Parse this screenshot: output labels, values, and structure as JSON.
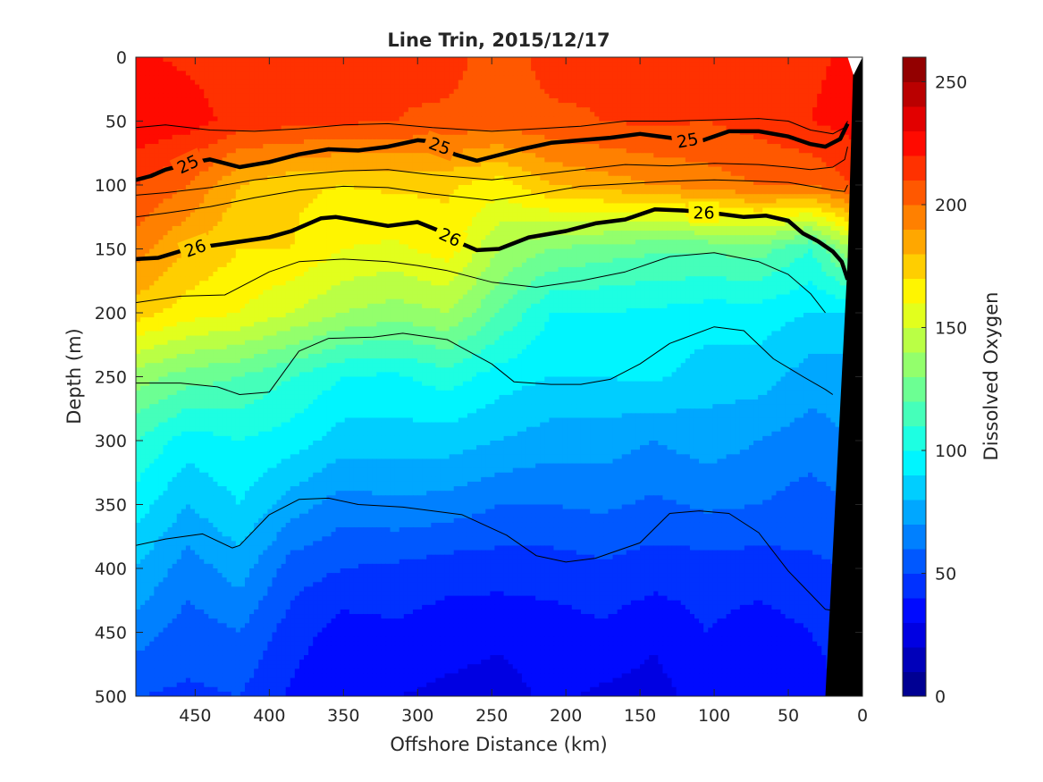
{
  "chart_data": {
    "type": "heatmap",
    "title": "Line Trin, 2015/12/17",
    "xlabel": "Offshore Distance (km)",
    "ylabel": "Depth (m)",
    "colorbar_label": "Dissolved Oxygen",
    "x_direction": "reversed",
    "y_direction": "reversed",
    "xlim": [
      0,
      490
    ],
    "ylim": [
      0,
      500
    ],
    "clim": [
      0,
      260
    ],
    "colormap": "jet",
    "xticks": [
      450,
      400,
      350,
      300,
      250,
      200,
      150,
      100,
      50,
      0
    ],
    "yticks": [
      0,
      50,
      100,
      150,
      200,
      250,
      300,
      350,
      400,
      450,
      500
    ],
    "cticks": [
      0,
      50,
      100,
      150,
      200,
      250
    ],
    "contour_levels": 26,
    "oxygen_field": {
      "x": [
        490,
        455,
        420,
        385,
        350,
        315,
        280,
        245,
        210,
        175,
        140,
        105,
        70,
        35,
        8
      ],
      "depth": [
        0,
        50,
        100,
        150,
        200,
        250,
        300,
        350,
        400,
        450,
        500
      ],
      "values": [
        [
          222,
          218,
          215,
          218,
          214,
          212,
          214,
          205,
          214,
          212,
          210,
          212,
          214,
          218,
          222
        ],
        [
          228,
          225,
          216,
          214,
          212,
          210,
          208,
          205,
          208,
          210,
          212,
          210,
          214,
          220,
          224
        ],
        [
          210,
          200,
          180,
          172,
          170,
          172,
          172,
          165,
          180,
          185,
          190,
          195,
          200,
          200,
          210
        ],
        [
          195,
          180,
          170,
          170,
          160,
          158,
          165,
          140,
          130,
          125,
          122,
          122,
          125,
          110,
          140
        ],
        [
          175,
          165,
          160,
          150,
          140,
          135,
          140,
          120,
          100,
          100,
          98,
          95,
          95,
          90,
          90
        ],
        [
          135,
          125,
          120,
          110,
          100,
          98,
          105,
          95,
          90,
          90,
          92,
          85,
          85,
          75,
          75
        ],
        [
          110,
          95,
          100,
          95,
          85,
          85,
          85,
          80,
          75,
          75,
          70,
          75,
          70,
          65,
          70
        ],
        [
          95,
          80,
          90,
          75,
          65,
          68,
          66,
          60,
          60,
          62,
          58,
          62,
          60,
          55,
          60
        ],
        [
          80,
          65,
          75,
          55,
          50,
          48,
          45,
          45,
          45,
          48,
          45,
          45,
          45,
          48,
          50
        ],
        [
          65,
          55,
          60,
          45,
          35,
          38,
          34,
          32,
          35,
          38,
          32,
          40,
          35,
          40,
          45
        ],
        [
          50,
          48,
          50,
          38,
          30,
          30,
          28,
          26,
          32,
          28,
          26,
          35,
          30,
          35,
          42
        ]
      ]
    },
    "isopycnals": [
      {
        "label": "25",
        "bold": true,
        "x": [
          490,
          480,
          470,
          450,
          440,
          420,
          400,
          380,
          360,
          340,
          320,
          300,
          290,
          275,
          260,
          250,
          230,
          210,
          190,
          170,
          150,
          130,
          110,
          90,
          70,
          50,
          35,
          25,
          15,
          10
        ],
        "depth": [
          96,
          93,
          88,
          82,
          80,
          86,
          82,
          76,
          72,
          73,
          70,
          65,
          66,
          76,
          81,
          78,
          72,
          67,
          65,
          63,
          60,
          63,
          66,
          58,
          58,
          62,
          68,
          70,
          64,
          52
        ]
      },
      {
        "label": "26",
        "bold": true,
        "x": [
          490,
          475,
          455,
          430,
          400,
          385,
          365,
          355,
          340,
          320,
          300,
          285,
          270,
          260,
          245,
          225,
          200,
          180,
          160,
          140,
          120,
          100,
          80,
          65,
          50,
          40,
          30,
          20,
          14,
          10
        ],
        "depth": [
          158,
          157,
          150,
          146,
          141,
          136,
          126,
          125,
          128,
          132,
          129,
          136,
          146,
          151,
          150,
          141,
          136,
          130,
          127,
          119,
          120,
          122,
          125,
          124,
          128,
          138,
          144,
          152,
          160,
          174
        ]
      },
      {
        "label": "",
        "bold": false,
        "x": [
          490,
          470,
          440,
          410,
          380,
          350,
          320,
          290,
          250,
          220,
          190,
          160,
          130,
          100,
          70,
          50,
          35,
          20,
          12,
          10
        ],
        "depth": [
          55,
          53,
          57,
          58,
          56,
          53,
          52,
          55,
          58,
          56,
          54,
          50,
          50,
          49,
          48,
          50,
          57,
          60,
          55,
          50
        ]
      },
      {
        "label": "",
        "bold": false,
        "x": [
          490,
          470,
          440,
          410,
          380,
          350,
          320,
          290,
          250,
          220,
          190,
          160,
          130,
          100,
          70,
          50,
          35,
          20,
          12,
          10
        ],
        "depth": [
          108,
          106,
          102,
          96,
          92,
          89,
          88,
          92,
          96,
          92,
          88,
          84,
          85,
          83,
          84,
          86,
          88,
          86,
          80,
          70
        ]
      },
      {
        "label": "",
        "bold": false,
        "x": [
          490,
          470,
          440,
          410,
          380,
          350,
          320,
          290,
          250,
          220,
          190,
          160,
          130,
          100,
          70,
          50,
          35,
          20,
          12,
          10
        ],
        "depth": [
          125,
          122,
          117,
          110,
          104,
          101,
          102,
          107,
          112,
          107,
          101,
          99,
          97,
          96,
          97,
          98,
          101,
          104,
          105,
          100
        ]
      },
      {
        "label": "",
        "bold": false,
        "x": [
          490,
          460,
          430,
          400,
          380,
          350,
          320,
          300,
          280,
          250,
          220,
          190,
          160,
          130,
          100,
          70,
          50,
          35,
          25
        ],
        "depth": [
          192,
          187,
          186,
          168,
          160,
          158,
          160,
          163,
          167,
          176,
          180,
          175,
          168,
          156,
          153,
          160,
          170,
          185,
          200
        ]
      },
      {
        "label": "",
        "bold": false,
        "x": [
          490,
          460,
          435,
          420,
          400,
          380,
          360,
          330,
          310,
          280,
          250,
          235,
          210,
          190,
          170,
          150,
          130,
          100,
          80,
          60,
          40,
          25,
          20
        ],
        "depth": [
          255,
          255,
          258,
          264,
          262,
          230,
          220,
          219,
          216,
          221,
          240,
          254,
          256,
          256,
          252,
          240,
          224,
          211,
          214,
          236,
          250,
          260,
          264
        ]
      },
      {
        "label": "",
        "bold": false,
        "x": [
          490,
          470,
          445,
          425,
          420,
          400,
          380,
          360,
          340,
          310,
          270,
          240,
          220,
          200,
          180,
          150,
          130,
          110,
          90,
          70,
          50,
          35,
          25,
          20
        ],
        "depth": [
          382,
          377,
          373,
          384,
          382,
          358,
          346,
          345,
          350,
          352,
          358,
          374,
          390,
          395,
          392,
          380,
          357,
          355,
          357,
          372,
          402,
          420,
          432,
          433
        ]
      }
    ],
    "coastline_mask": {
      "x": [
        0,
        25,
        10,
        6,
        0
      ],
      "depth": [
        500,
        500,
        160,
        0,
        0
      ]
    }
  }
}
